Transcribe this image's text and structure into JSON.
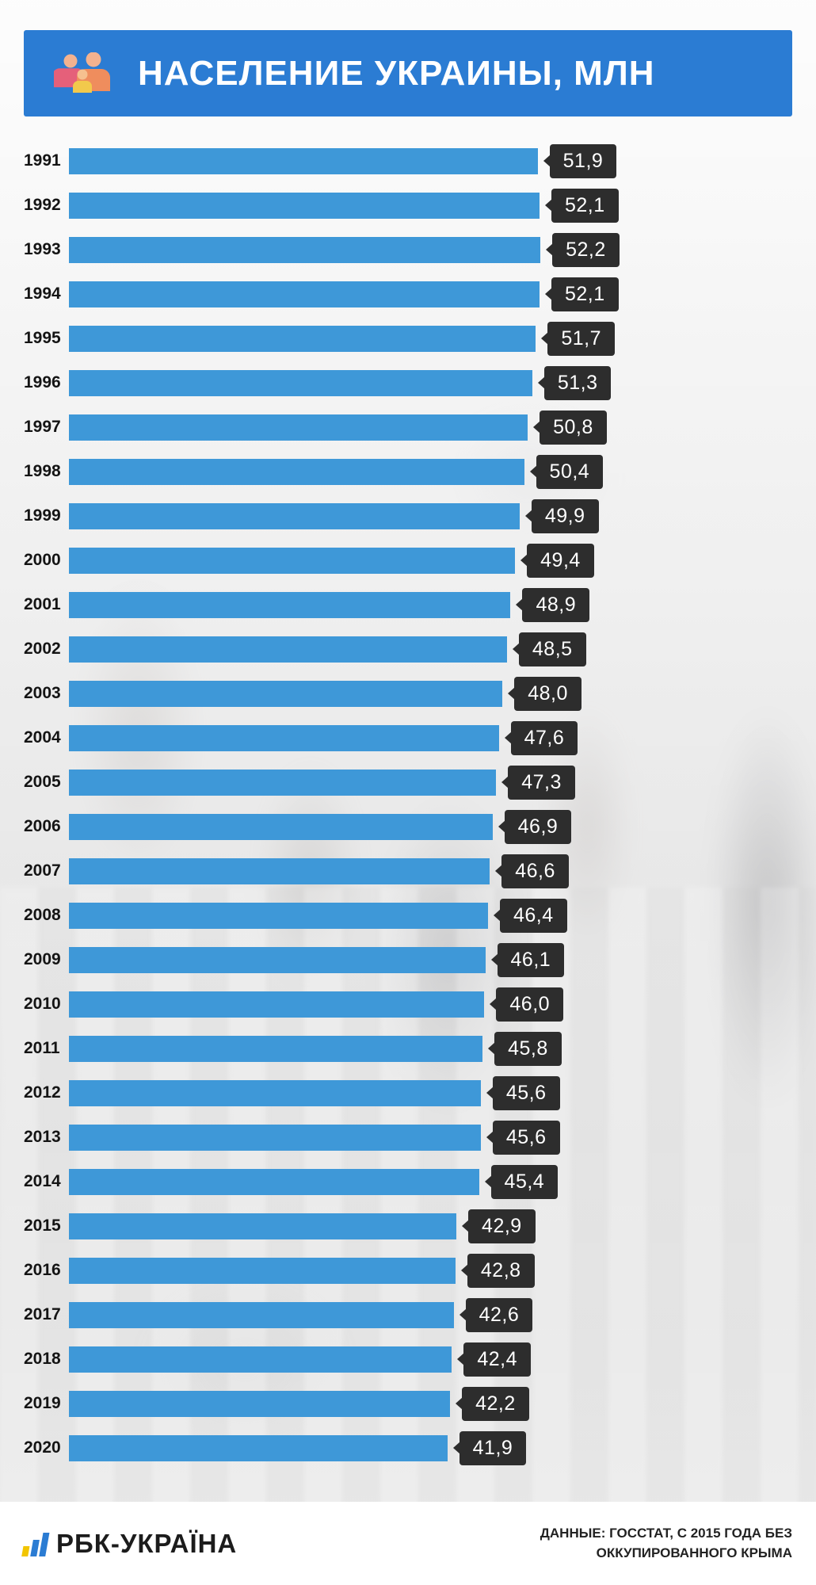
{
  "header": {
    "title": "НАСЕЛЕНИЕ УКРАИНЫ, МЛН",
    "icon": "family-icon"
  },
  "chart_data": {
    "type": "bar",
    "orientation": "horizontal",
    "title": "НАСЕЛЕНИЕ УКРАИНЫ, МЛН",
    "unit": "млн",
    "xlim": [
      0,
      52.2
    ],
    "categories": [
      "1991",
      "1992",
      "1993",
      "1994",
      "1995",
      "1996",
      "1997",
      "1998",
      "1999",
      "2000",
      "2001",
      "2002",
      "2003",
      "2004",
      "2005",
      "2006",
      "2007",
      "2008",
      "2009",
      "2010",
      "2011",
      "2012",
      "2013",
      "2014",
      "2015",
      "2016",
      "2017",
      "2018",
      "2019",
      "2020"
    ],
    "values": [
      51.9,
      52.1,
      52.2,
      52.1,
      51.7,
      51.3,
      50.8,
      50.4,
      49.9,
      49.4,
      48.9,
      48.5,
      48.0,
      47.6,
      47.3,
      46.9,
      46.6,
      46.4,
      46.1,
      46.0,
      45.8,
      45.6,
      45.6,
      45.4,
      42.9,
      42.8,
      42.6,
      42.4,
      42.2,
      41.9
    ],
    "value_labels": [
      "51,9",
      "52,1",
      "52,2",
      "52,1",
      "51,7",
      "51,3",
      "50,8",
      "50,4",
      "49,9",
      "49,4",
      "48,9",
      "48,5",
      "48,0",
      "47,6",
      "47,3",
      "46,9",
      "46,6",
      "46,4",
      "46,1",
      "46,0",
      "45,8",
      "45,6",
      "45,6",
      "45,4",
      "42,9",
      "42,8",
      "42,6",
      "42,4",
      "42,2",
      "41,9"
    ],
    "source": "ДАННЫЕ: ГОССТАТ, С 2015 ГОДА БЕЗ ОККУПИРОВАННОГО КРЫМА",
    "legend": null,
    "grid": false
  },
  "footer": {
    "logo_text": "РБК-УКРАЇНА",
    "source_line1": "ДАННЫЕ: ГОССТАТ, С 2015 ГОДА БЕЗ",
    "source_line2": "ОККУПИРОВАННОГО КРЫМА"
  },
  "colors": {
    "header_blue": "#2b7cd3",
    "bar_blue": "#3e98d8",
    "badge_dark": "#2d2d2d",
    "logo_blue": "#2b7cd3",
    "logo_yellow": "#f2c500",
    "background_wash": "#e9e9e9"
  }
}
